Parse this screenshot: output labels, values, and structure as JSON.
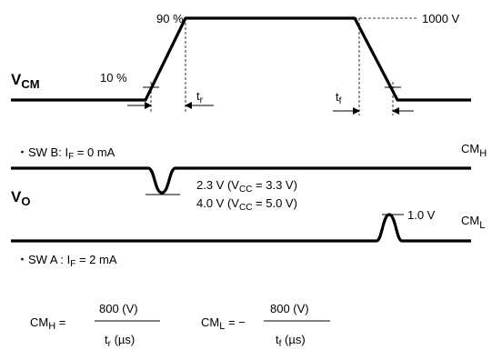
{
  "vcm": {
    "label_main": "V",
    "label_sub": "CM",
    "pct90": "90 %",
    "pct10": "10 %",
    "voltage": "1000 V",
    "tr_main": "t",
    "tr_sub": "r",
    "tf_main": "t",
    "tf_sub": "f"
  },
  "swb": {
    "pre": "・SW B: I",
    "sub": "F",
    "post": " = 0 mA",
    "cm_main": "CM",
    "cm_sub": "H"
  },
  "vo": {
    "label_main": "V",
    "label_sub": "O",
    "th1_pre": "2.3 V (V",
    "th1_sub": "CC",
    "th1_post": " = 3.3 V)",
    "th2_pre": "4.0 V (V",
    "th2_sub": "CC",
    "th2_post": " = 5.0 V)",
    "peak": "1.0 V"
  },
  "swa": {
    "pre": "・SW A : I",
    "sub": "F",
    "post": " = 2 mA",
    "cm_main": "CM",
    "cm_sub": "L"
  },
  "formula": {
    "cmh_main": "CM",
    "cmh_sub": "H",
    "cmh_eq": " = ",
    "cmh_num": "800 (V)",
    "cmh_den_pre": "t",
    "cmh_den_sub": "r",
    "cmh_den_post": " (µs)",
    "cml_main": "CM",
    "cml_sub": "L",
    "cml_eq": " = −",
    "cml_num": "800 (V)",
    "cml_den_pre": "t",
    "cml_den_sub": "f",
    "cml_den_post": " (µs)"
  }
}
